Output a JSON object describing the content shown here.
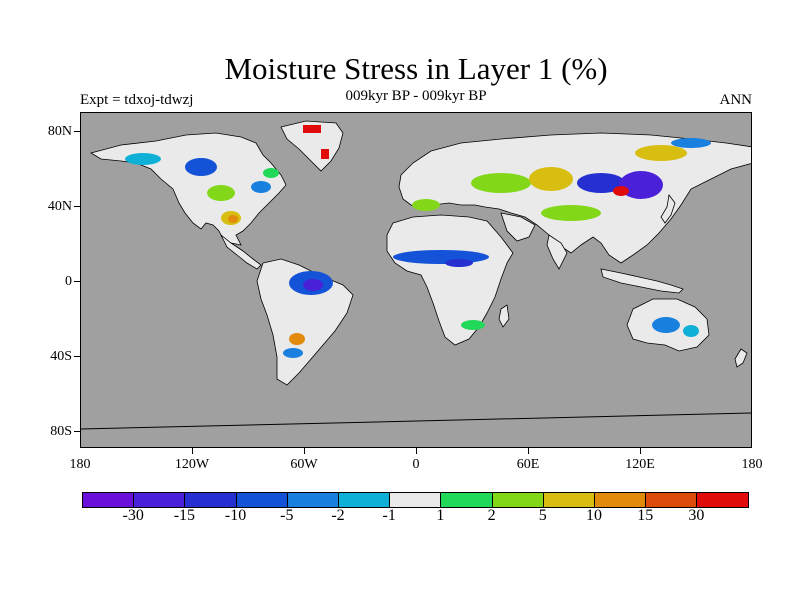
{
  "title": "Moisture Stress in Layer 1 (%)",
  "subtitle": "009kyr BP - 009kyr BP",
  "left_label": "Expt = tdxoj-tdwzj",
  "right_label": "ANN",
  "y_ticks": [
    "80N",
    "40N",
    "0",
    "40S",
    "80S"
  ],
  "x_ticks": [
    "180",
    "120W",
    "60W",
    "0",
    "60E",
    "120E",
    "180"
  ],
  "colors": {
    "ocean": "#a0a0a0",
    "land_neutral": "#eaeaea",
    "coastline": "#000000"
  },
  "legend": {
    "colors": [
      "#6a10d8",
      "#4a20d8",
      "#2630d0",
      "#1452d8",
      "#1a80e0",
      "#0eb0d8",
      "#eaeaea",
      "#22d858",
      "#82d818",
      "#d8be10",
      "#e28a0c",
      "#de4c0c",
      "#e00c0c"
    ],
    "labels": [
      "-30",
      "-15",
      "-10",
      "-5",
      "-2",
      "-1",
      "1",
      "2",
      "5",
      "10",
      "15",
      "30"
    ]
  }
}
